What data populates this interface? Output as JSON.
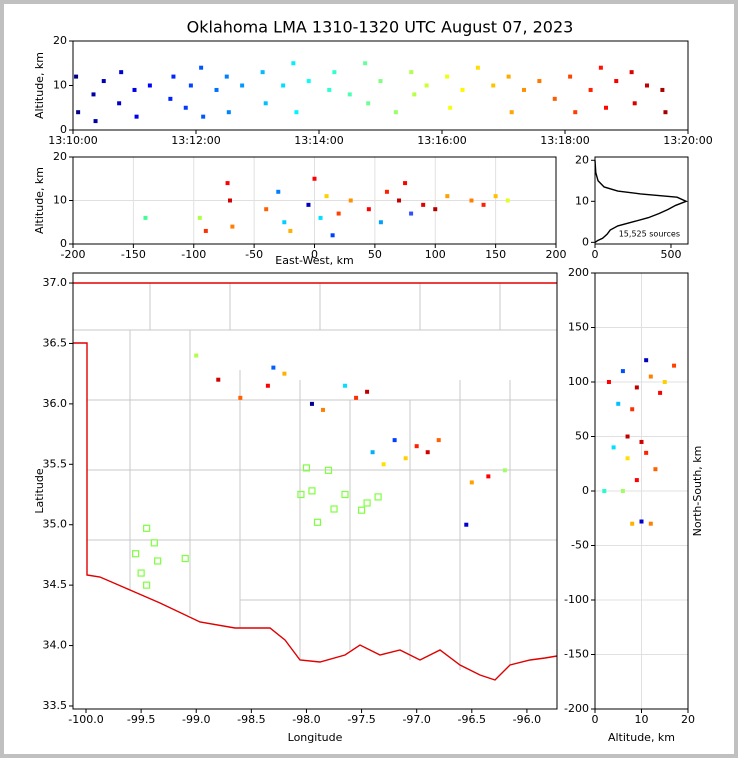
{
  "chart_data": [
    {
      "type": "scatter",
      "title": "Oklahoma LMA 1310-1320 UTC August 07, 2023",
      "ylabel": "Altitude, km",
      "colormap": "jet",
      "x": [
        "13:10:03",
        "13:10:05",
        "13:10:20",
        "13:10:22",
        "13:10:30",
        "13:10:45",
        "13:10:47",
        "13:11:00",
        "13:11:02",
        "13:11:15",
        "13:11:35",
        "13:11:38",
        "13:11:50",
        "13:11:55",
        "13:12:05",
        "13:12:07",
        "13:12:20",
        "13:12:30",
        "13:12:32",
        "13:12:45",
        "13:13:05",
        "13:13:08",
        "13:13:25",
        "13:13:35",
        "13:13:38",
        "13:13:50",
        "13:14:10",
        "13:14:15",
        "13:14:30",
        "13:14:45",
        "13:14:48",
        "13:15:00",
        "13:15:15",
        "13:15:30",
        "13:15:33",
        "13:15:45",
        "13:16:05",
        "13:16:08",
        "13:16:20",
        "13:16:35",
        "13:16:50",
        "13:17:05",
        "13:17:08",
        "13:17:20",
        "13:17:35",
        "13:17:50",
        "13:18:05",
        "13:18:10",
        "13:18:25",
        "13:18:35",
        "13:18:40",
        "13:18:50",
        "13:19:05",
        "13:19:08",
        "13:19:20",
        "13:19:35",
        "13:19:38"
      ],
      "y": [
        12,
        4,
        8,
        2,
        11,
        6,
        13,
        9,
        3,
        10,
        7,
        12,
        5,
        10,
        14,
        3,
        9,
        12,
        4,
        10,
        13,
        6,
        10,
        15,
        4,
        11,
        9,
        13,
        8,
        15,
        6,
        11,
        4,
        13,
        8,
        10,
        12,
        5,
        9,
        14,
        10,
        12,
        4,
        9,
        11,
        7,
        12,
        4,
        9,
        14,
        5,
        11,
        13,
        6,
        10,
        9,
        4
      ],
      "xlim": [
        "13:10:00",
        "13:20:00"
      ],
      "xticks": [
        "13:10:00",
        "13:12:00",
        "13:14:00",
        "13:16:00",
        "13:18:00",
        "13:20:00"
      ],
      "ylim": [
        0,
        20
      ],
      "yticks": [
        0,
        10,
        20
      ],
      "grid": false
    },
    {
      "type": "scatter",
      "xlabel": "East-West, km",
      "ylabel": "Altitude, km",
      "x": [
        -95,
        -90,
        -70,
        -68,
        -72,
        -40,
        -30,
        -25,
        -20,
        -5,
        0,
        5,
        10,
        15,
        20,
        30,
        45,
        55,
        60,
        70,
        75,
        80,
        90,
        100,
        110,
        130,
        140,
        150,
        160,
        -140
      ],
      "y": [
        6,
        3,
        10,
        4,
        14,
        8,
        12,
        5,
        3,
        9,
        15,
        6,
        11,
        2,
        7,
        10,
        8,
        5,
        12,
        10,
        14,
        7,
        9,
        8,
        11,
        10,
        9,
        11,
        10,
        6
      ],
      "colors": [
        "#b0ff47",
        "#ff3000",
        "#d00000",
        "#ff8000",
        "#ff0000",
        "#ff6000",
        "#0080ff",
        "#00d0ff",
        "#ffb000",
        "#0000c0",
        "#ff0000",
        "#00e0ff",
        "#ffd000",
        "#0040ff",
        "#ff4000",
        "#ff9000",
        "#ff0000",
        "#00a0ff",
        "#ff2000",
        "#c00000",
        "#ff0000",
        "#3050ff",
        "#e00000",
        "#b00000",
        "#ffa000",
        "#ff8000",
        "#ff2000",
        "#ffc000",
        "#e0ff20",
        "#40ff90"
      ],
      "xlim": [
        -200,
        200
      ],
      "xticks": [
        -200,
        -150,
        -100,
        -50,
        0,
        50,
        100,
        150,
        200
      ],
      "ylim": [
        0,
        20
      ],
      "yticks": [
        0,
        10,
        20
      ],
      "grid": true
    },
    {
      "type": "line",
      "annotation": "15,525 sources",
      "color": "#000000",
      "x": [
        0,
        20,
        50,
        80,
        100,
        150,
        250,
        350,
        420,
        480,
        530,
        600,
        540,
        300,
        150,
        60,
        20,
        5,
        0
      ],
      "y": [
        0,
        0.5,
        1,
        2,
        3,
        4,
        5,
        6,
        7,
        8,
        9,
        10,
        11,
        11.8,
        12.5,
        13.5,
        15,
        17,
        20
      ],
      "xlim": [
        0,
        612
      ],
      "xticks": [
        0,
        500
      ],
      "ylim": [
        -0.4,
        20.8
      ],
      "yticks": [
        0,
        10,
        20
      ],
      "grid": false
    },
    {
      "type": "scatter",
      "xlabel": "Longitude",
      "ylabel": "Latitude",
      "x": [
        -98.8,
        -98.3,
        -98.2,
        -98.35,
        -97.95,
        -97.85,
        -97.65,
        -97.45,
        -97.55,
        -97.4,
        -97.2,
        -97.0,
        -96.9,
        -97.1,
        -96.8,
        -96.5,
        -96.35,
        -96.2,
        -96.55,
        -99.0,
        -98.6,
        -97.3
      ],
      "y": [
        36.2,
        36.3,
        36.25,
        36.15,
        36.0,
        35.95,
        36.15,
        36.1,
        36.05,
        35.6,
        35.7,
        35.65,
        35.6,
        35.55,
        35.7,
        35.35,
        35.4,
        35.45,
        35.0,
        36.4,
        36.05,
        35.5
      ],
      "colors": [
        "#d00000",
        "#0060ff",
        "#ffb000",
        "#ff0000",
        "#000090",
        "#ff8000",
        "#00e0ff",
        "#c00000",
        "#ff3000",
        "#00b0ff",
        "#0040ff",
        "#ff2000",
        "#d00000",
        "#ffd000",
        "#ff6000",
        "#ffa000",
        "#ff0000",
        "#a0ff60",
        "#0000d0",
        "#b0ff47",
        "#ff6000",
        "#ffe000"
      ],
      "stations": {
        "x": [
          -99.45,
          -99.38,
          -99.55,
          -99.35,
          -99.5,
          -99.45,
          -99.1,
          -98.05,
          -97.95,
          -97.8,
          -97.9,
          -97.75,
          -97.65,
          -97.5,
          -97.45,
          -97.35,
          -98.0
        ],
        "y": [
          34.97,
          34.85,
          34.76,
          34.7,
          34.6,
          34.5,
          34.72,
          35.25,
          35.28,
          35.45,
          35.02,
          35.13,
          35.25,
          35.12,
          35.18,
          35.23,
          35.47
        ],
        "color": "#7fff3f"
      },
      "xlim": [
        -100.118,
        -95.727
      ],
      "xticks": [
        {
          "value": -100,
          "label": "-100.0"
        },
        {
          "value": -99.5,
          "label": "-99.5"
        },
        {
          "value": -99,
          "label": "-99.0"
        },
        {
          "value": -98.5,
          "label": "-98.5"
        },
        {
          "value": -98,
          "label": "-98.0"
        },
        {
          "value": -97.5,
          "label": "-97.5"
        },
        {
          "value": -97,
          "label": "-97.0"
        },
        {
          "value": -96.5,
          "label": "-96.5"
        },
        {
          "value": -96,
          "label": "-96.0"
        }
      ],
      "ylim": [
        33.475,
        37.083
      ],
      "yticks": [
        {
          "value": 33.5,
          "label": "33.5"
        },
        {
          "value": 34,
          "label": "34.0"
        },
        {
          "value": 34.5,
          "label": "34.5"
        },
        {
          "value": 35,
          "label": "35.0"
        },
        {
          "value": 35.5,
          "label": "35.5"
        },
        {
          "value": 36,
          "label": "36.0"
        },
        {
          "value": 36.5,
          "label": "36.5"
        },
        {
          "value": 37,
          "label": "37.0"
        }
      ],
      "grid": false
    },
    {
      "type": "scatter",
      "xlabel": "Altitude, km",
      "ylabel": "North-South, km",
      "x": [
        3,
        6,
        9,
        12,
        15,
        5,
        8,
        11,
        14,
        4,
        7,
        10,
        13,
        9,
        6,
        11,
        8,
        10,
        12,
        7,
        17,
        2
      ],
      "y": [
        100,
        110,
        95,
        105,
        100,
        80,
        75,
        120,
        90,
        40,
        30,
        45,
        20,
        10,
        0,
        35,
        -30,
        -28,
        -30,
        50,
        115,
        0
      ],
      "colors": [
        "#ff0000",
        "#0050ff",
        "#c00000",
        "#ff8000",
        "#ffd000",
        "#00c0ff",
        "#ff3000",
        "#0000c0",
        "#ff0000",
        "#00e0ff",
        "#ffe000",
        "#d00000",
        "#ff6000",
        "#ff0000",
        "#a0ff60",
        "#ff2000",
        "#ffb000",
        "#0000d0",
        "#ff8000",
        "#c00000",
        "#ff4000",
        "#20ffd0"
      ],
      "xlim": [
        0,
        20
      ],
      "xticks": [
        0,
        10,
        20
      ],
      "ylim": [
        -200,
        200
      ],
      "yticks": [
        -200,
        -150,
        -100,
        -50,
        0,
        50,
        100,
        150,
        200
      ],
      "grid": true
    }
  ]
}
